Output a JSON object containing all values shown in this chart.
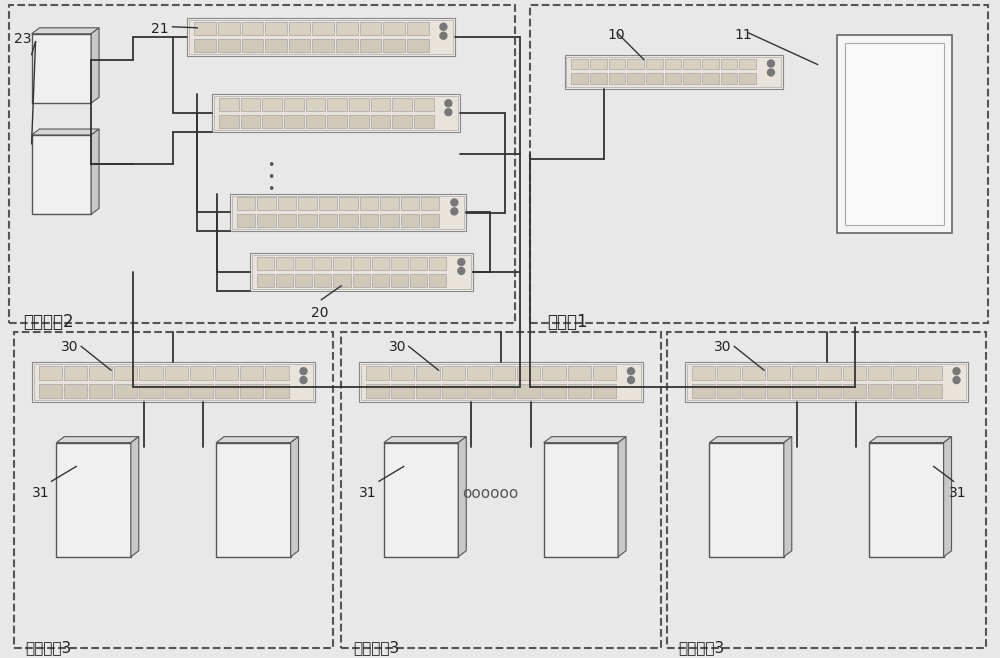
{
  "bg_color": "#e8e8e8",
  "text_color": "#222222",
  "line_color": "#333333",
  "title_area1": "第一区域2",
  "title_monitor": "监控室1",
  "title_area2": "第二区域3",
  "label_21": "21",
  "label_20": "20",
  "label_23": "23",
  "label_10": "10",
  "label_11": "11",
  "label_30": "30",
  "label_31": "31",
  "dots": "oooooo"
}
